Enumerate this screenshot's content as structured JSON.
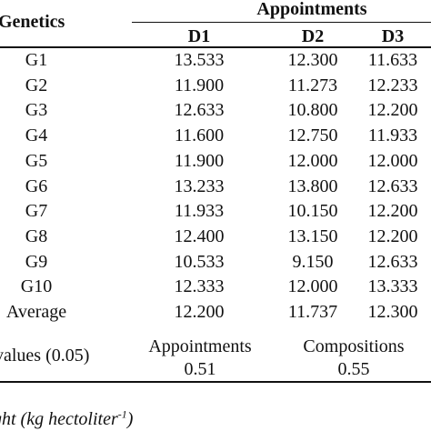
{
  "header": {
    "genetics_label": "Genetics",
    "group_label": "Appointments",
    "columns": [
      "D1",
      "D2",
      "D3"
    ]
  },
  "rows": [
    {
      "label": "G1",
      "values": [
        "13.533",
        "12.300",
        "11.633"
      ]
    },
    {
      "label": "G2",
      "values": [
        "11.900",
        "11.273",
        "12.233"
      ]
    },
    {
      "label": "G3",
      "values": [
        "12.633",
        "10.800",
        "12.200"
      ]
    },
    {
      "label": "G4",
      "values": [
        "11.600",
        "12.750",
        "11.933"
      ]
    },
    {
      "label": "G5",
      "values": [
        "11.900",
        "12.000",
        "12.000"
      ]
    },
    {
      "label": "G6",
      "values": [
        "13.233",
        "13.800",
        "12.633"
      ]
    },
    {
      "label": "G7",
      "values": [
        "11.933",
        "10.150",
        "12.200"
      ]
    },
    {
      "label": "G8",
      "values": [
        "12.400",
        "13.150",
        "12.200"
      ]
    },
    {
      "label": "G9",
      "values": [
        "10.533",
        "9.150",
        "12.633"
      ]
    },
    {
      "label": "G10",
      "values": [
        "12.333",
        "12.000",
        "13.333"
      ]
    },
    {
      "label": "Average",
      "values": [
        "12.200",
        "11.737",
        "12.300"
      ]
    }
  ],
  "lsd": {
    "label": "values (0.05)",
    "group1_label": "Appointments",
    "group1_value": "0.51",
    "group2_label": "Compositions",
    "group2_value": "0.55"
  },
  "footnote": {
    "text": "ght (kg hectoliter",
    "superscript": "-1",
    "closing": ")"
  }
}
